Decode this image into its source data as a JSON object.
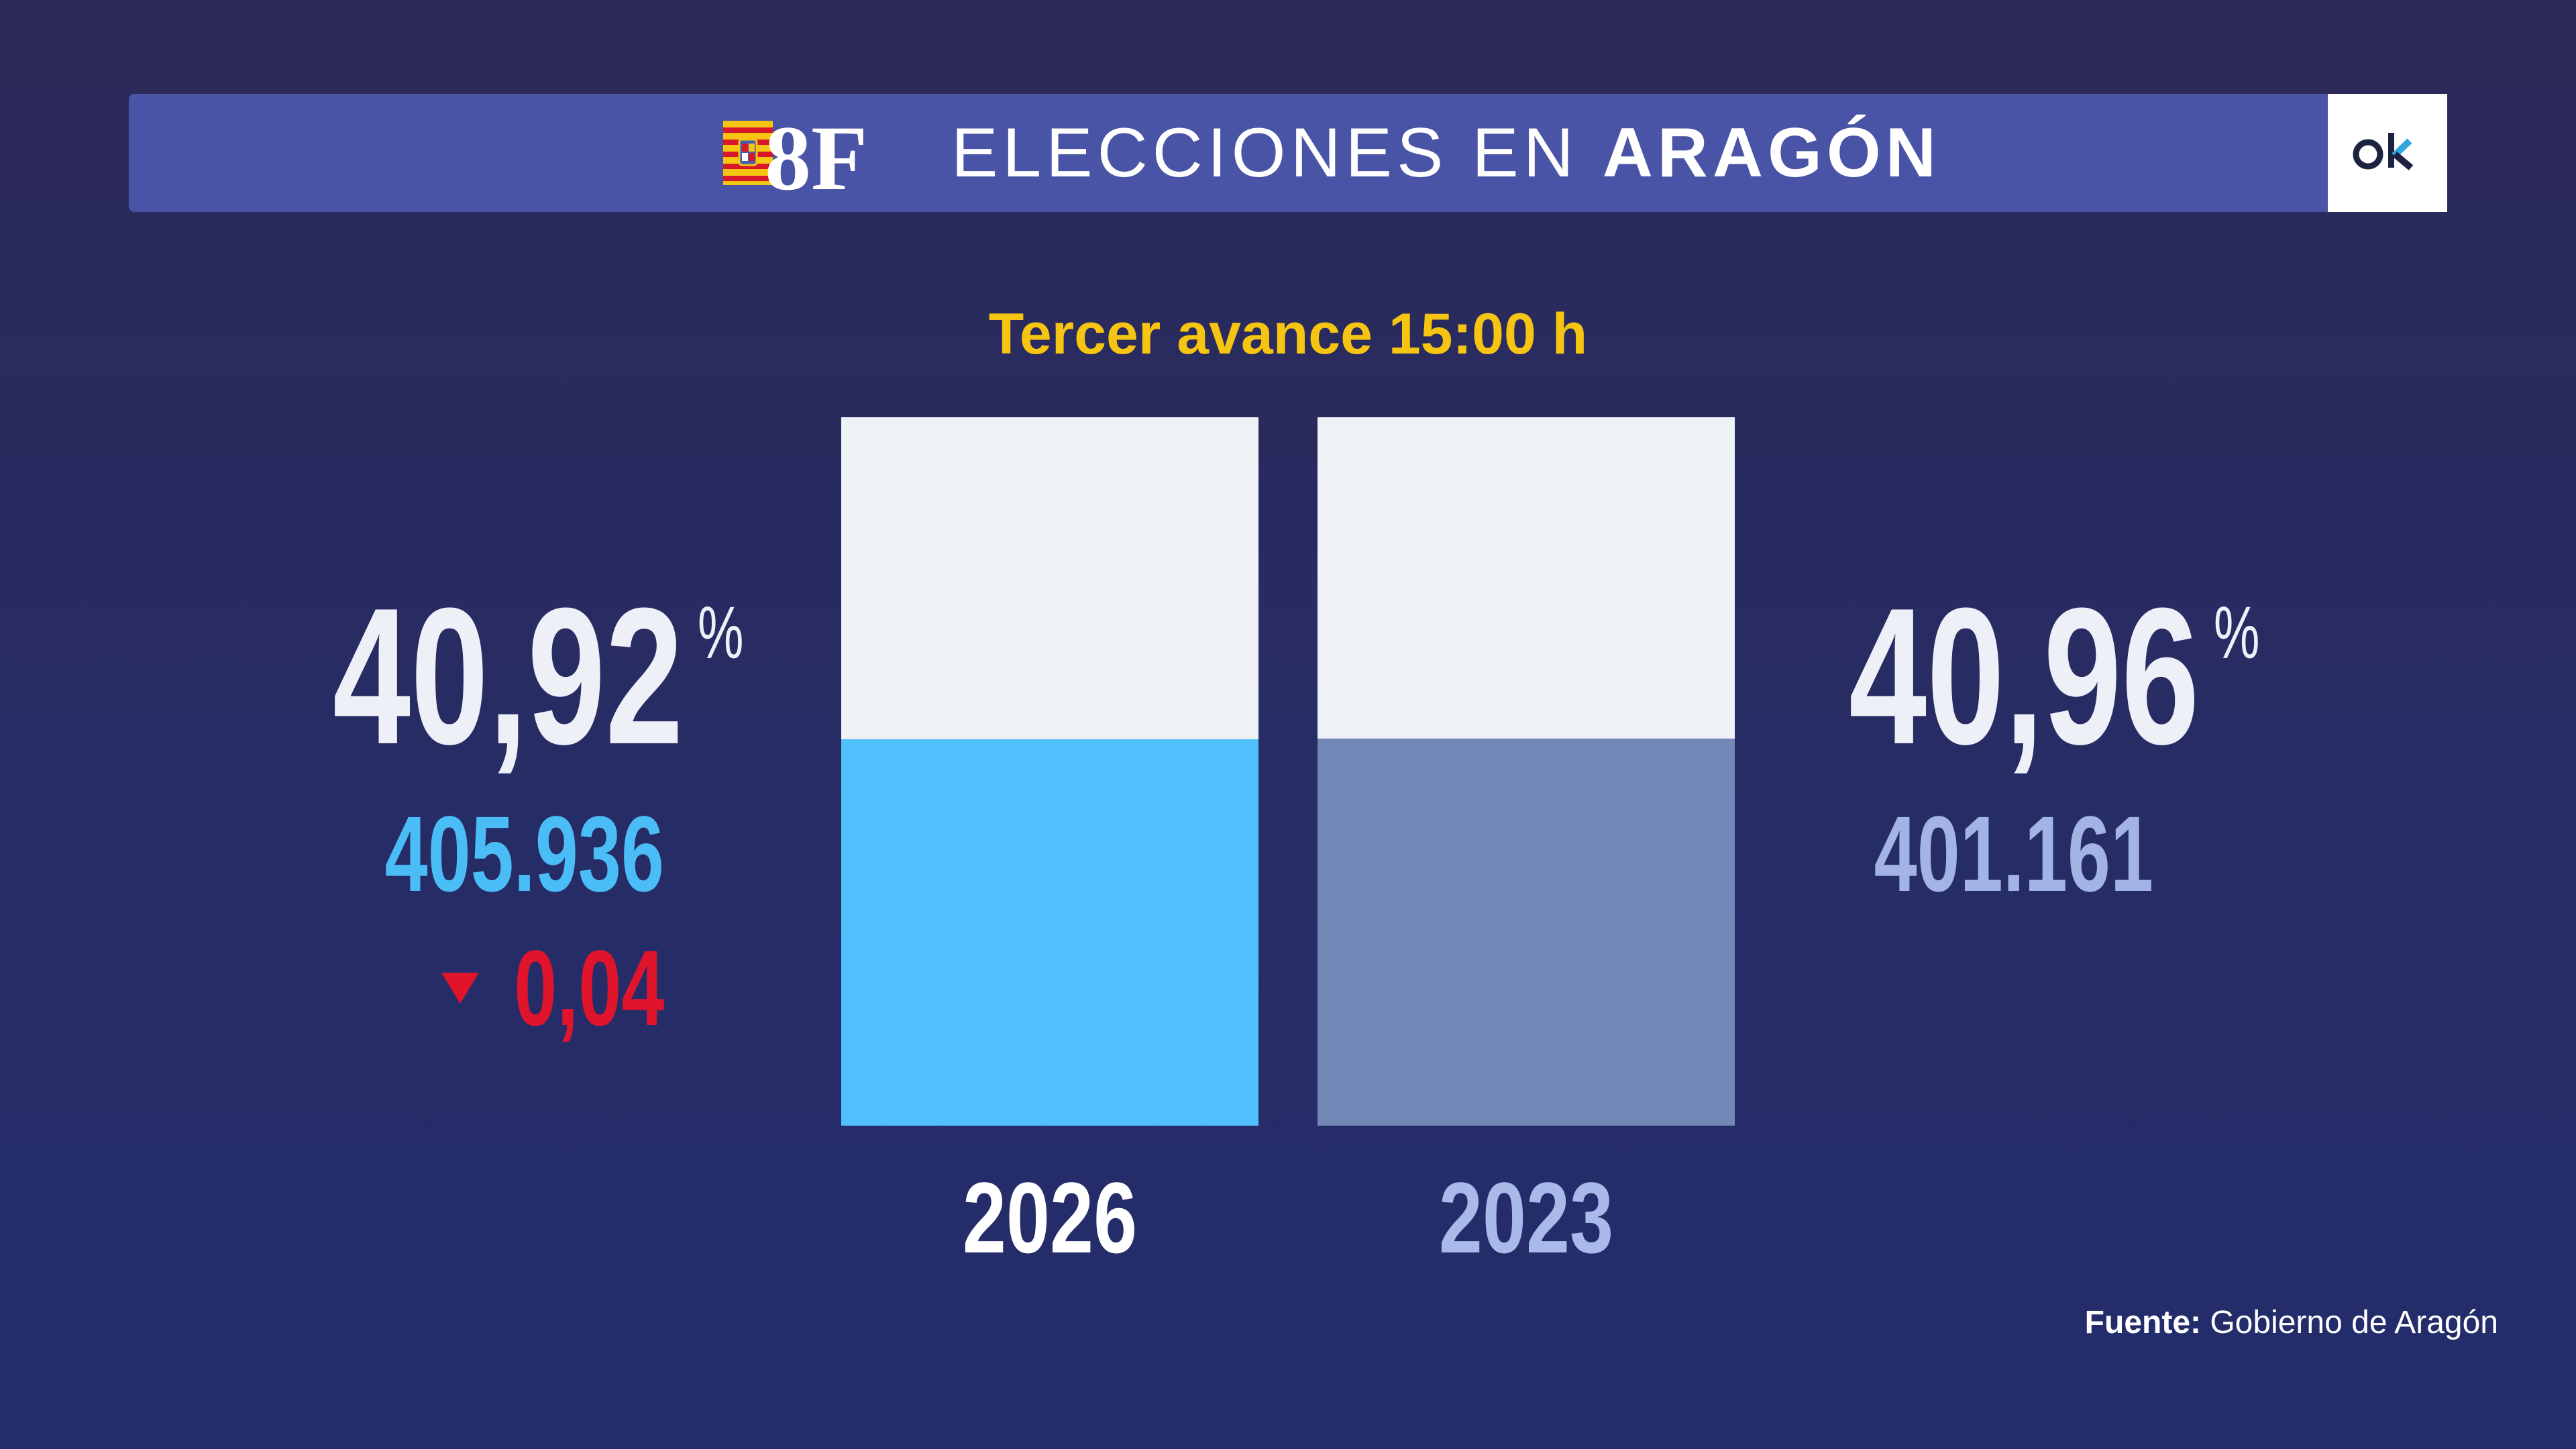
{
  "header": {
    "logo_text": "8F",
    "title_prefix": "ELECCIONES EN",
    "title_highlight": "ARAGÓN",
    "brand_logo_text": "ok"
  },
  "subtitle": "Tercer avance 15:00 h",
  "left_panel": {
    "percentage": "40,92",
    "percent_sign": "%",
    "votes": "405.936",
    "change": "0,04",
    "change_direction": "down"
  },
  "right_panel": {
    "percentage": "40,96",
    "percent_sign": "%",
    "votes": "401.161"
  },
  "chart_data": {
    "type": "bar",
    "title": "Tercer avance 15:00 h",
    "categories": [
      "2026",
      "2023"
    ],
    "values": [
      40.92,
      40.96
    ],
    "unit": "%",
    "votes": [
      405936,
      401161
    ],
    "ylim": [
      0,
      75
    ],
    "grid": false,
    "colors": {
      "2026": "#50c1fd",
      "2023": "#7387b6",
      "bar_background": "#eef2f7"
    }
  },
  "source": {
    "label": "Fuente:",
    "value": "Gobierno de Aragón"
  },
  "colors": {
    "accent_yellow": "#f6c511",
    "header_bar": "#4a54a6",
    "negative_red": "#e0142b"
  }
}
